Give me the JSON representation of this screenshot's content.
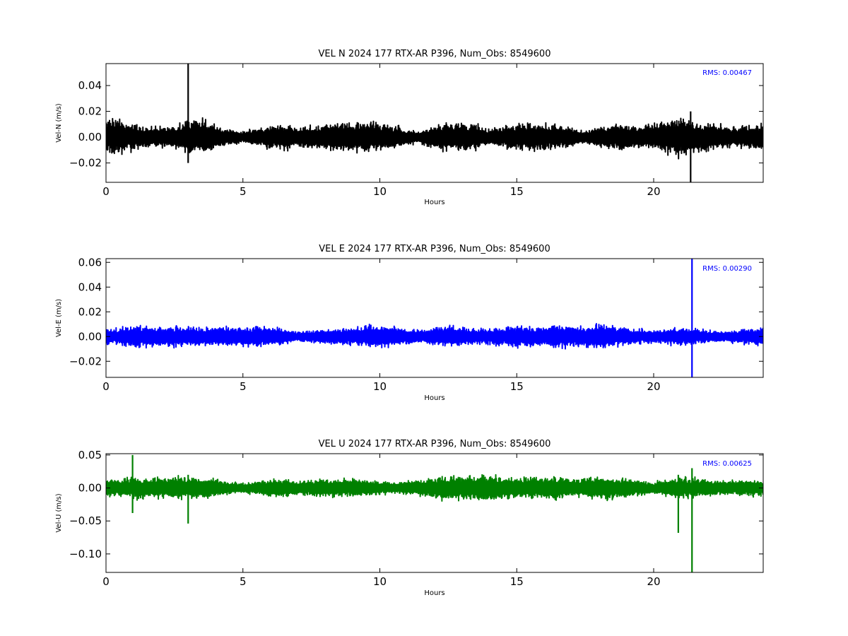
{
  "chart_data": [
    {
      "type": "line",
      "title": "VEL N 2024 177 RTX-AR  P396, Num_Obs: 8549600",
      "xlabel": "Hours",
      "ylabel": "Vel-N (m/s)",
      "xlim": [
        0,
        24
      ],
      "ylim": [
        -0.035,
        0.057
      ],
      "xticks": [
        0,
        5,
        10,
        15,
        20
      ],
      "yticks": [
        -0.02,
        0.0,
        0.02,
        0.04
      ],
      "ytick_labels": [
        "−0.02",
        "0.00",
        "0.02",
        "0.04"
      ],
      "rms_label": "RMS:  0.00467",
      "rms_value": 0.00467,
      "color": "#000000",
      "rms_color": "#0000ff",
      "grid": false,
      "series": [
        {
          "x": [
            0,
            0.5,
            1,
            1.5,
            2,
            2.5,
            3,
            3.5,
            4,
            4.5,
            5,
            5.5,
            6,
            6.5,
            7,
            7.5,
            8,
            8.5,
            9,
            9.5,
            10,
            10.5,
            11,
            11.5,
            12,
            12.5,
            13,
            13.5,
            14,
            14.5,
            15,
            15.5,
            16,
            16.5,
            17,
            17.5,
            18,
            18.5,
            19,
            19.5,
            20,
            20.5,
            21,
            21.5,
            22,
            22.5,
            23,
            23.5,
            24
          ],
          "amplitude": [
            0.018,
            0.015,
            0.012,
            0.01,
            0.009,
            0.01,
            0.016,
            0.018,
            0.011,
            0.007,
            0.006,
            0.008,
            0.011,
            0.012,
            0.01,
            0.011,
            0.012,
            0.013,
            0.013,
            0.014,
            0.013,
            0.011,
            0.007,
            0.006,
            0.011,
            0.014,
            0.013,
            0.012,
            0.008,
            0.01,
            0.012,
            0.012,
            0.012,
            0.011,
            0.009,
            0.005,
            0.01,
            0.012,
            0.012,
            0.011,
            0.012,
            0.016,
            0.018,
            0.014,
            0.013,
            0.011,
            0.009,
            0.012,
            0.011
          ],
          "spikes": [
            {
              "x": 3.0,
              "min": -0.02,
              "max": 0.057
            },
            {
              "x": 21.35,
              "min": -0.036,
              "max": 0.02
            }
          ]
        }
      ]
    },
    {
      "type": "line",
      "title": "VEL E 2024 177 RTX-AR  P396, Num_Obs: 8549600",
      "xlabel": "Hours",
      "ylabel": "Vel-E (m/s)",
      "xlim": [
        0,
        24
      ],
      "ylim": [
        -0.033,
        0.063
      ],
      "xticks": [
        0,
        5,
        10,
        15,
        20
      ],
      "yticks": [
        -0.02,
        0.0,
        0.02,
        0.04,
        0.06
      ],
      "ytick_labels": [
        "−0.02",
        "0.00",
        "0.02",
        "0.04",
        "0.06"
      ],
      "rms_label": "RMS:  0.00290",
      "rms_value": 0.0029,
      "color": "#0000ff",
      "rms_color": "#0000ff",
      "grid": false,
      "series": [
        {
          "x": [
            0,
            0.5,
            1,
            1.5,
            2,
            2.5,
            3,
            3.5,
            4,
            4.5,
            5,
            5.5,
            6,
            6.5,
            7,
            7.5,
            8,
            8.5,
            9,
            9.5,
            10,
            10.5,
            11,
            11.5,
            12,
            12.5,
            13,
            13.5,
            14,
            14.5,
            15,
            15.5,
            16,
            16.5,
            17,
            17.5,
            18,
            18.5,
            19,
            19.5,
            20,
            20.5,
            21,
            21.5,
            22,
            22.5,
            23,
            23.5,
            24
          ],
          "amplitude": [
            0.008,
            0.008,
            0.011,
            0.01,
            0.009,
            0.01,
            0.01,
            0.009,
            0.01,
            0.009,
            0.009,
            0.01,
            0.009,
            0.008,
            0.005,
            0.006,
            0.007,
            0.008,
            0.009,
            0.01,
            0.011,
            0.01,
            0.008,
            0.006,
            0.009,
            0.01,
            0.009,
            0.008,
            0.008,
            0.009,
            0.011,
            0.01,
            0.01,
            0.011,
            0.01,
            0.01,
            0.012,
            0.011,
            0.008,
            0.007,
            0.006,
            0.008,
            0.009,
            0.008,
            0.006,
            0.005,
            0.006,
            0.008,
            0.009
          ],
          "spikes": [
            {
              "x": 21.4,
              "min": -0.033,
              "max": 0.063
            }
          ]
        }
      ]
    },
    {
      "type": "line",
      "title": "VEL U 2024 177 RTX-AR  P396, Num_Obs: 8549600",
      "xlabel": "Hours",
      "ylabel": "Vel-U (m/s)",
      "xlim": [
        0,
        24
      ],
      "ylim": [
        -0.128,
        0.052
      ],
      "xticks": [
        0,
        5,
        10,
        15,
        20
      ],
      "yticks": [
        -0.1,
        -0.05,
        0.0,
        0.05
      ],
      "ytick_labels": [
        "−0.10",
        "−0.05",
        "0.00",
        "0.05"
      ],
      "rms_label": "RMS:  0.00625",
      "rms_value": 0.00625,
      "color": "#008000",
      "rms_color": "#0000ff",
      "grid": false,
      "series": [
        {
          "x": [
            0,
            0.5,
            1,
            1.5,
            2,
            2.5,
            3,
            3.5,
            4,
            4.5,
            5,
            5.5,
            6,
            6.5,
            7,
            7.5,
            8,
            8.5,
            9,
            9.5,
            10,
            10.5,
            11,
            11.5,
            12,
            12.5,
            13,
            13.5,
            14,
            14.5,
            15,
            15.5,
            16,
            16.5,
            17,
            17.5,
            18,
            18.5,
            19,
            19.5,
            20,
            20.5,
            21,
            21.5,
            22,
            22.5,
            23,
            23.5,
            24
          ],
          "amplitude": [
            0.018,
            0.015,
            0.02,
            0.018,
            0.019,
            0.02,
            0.021,
            0.02,
            0.016,
            0.011,
            0.009,
            0.012,
            0.016,
            0.017,
            0.012,
            0.015,
            0.017,
            0.016,
            0.017,
            0.015,
            0.012,
            0.01,
            0.012,
            0.016,
            0.02,
            0.022,
            0.022,
            0.024,
            0.025,
            0.02,
            0.018,
            0.02,
            0.019,
            0.02,
            0.016,
            0.018,
            0.021,
            0.02,
            0.016,
            0.013,
            0.011,
            0.016,
            0.021,
            0.018,
            0.015,
            0.013,
            0.014,
            0.016,
            0.014
          ],
          "spikes": [
            {
              "x": 0.97,
              "min": -0.038,
              "max": 0.05
            },
            {
              "x": 3.0,
              "min": -0.054,
              "max": 0.02
            },
            {
              "x": 20.9,
              "min": -0.068,
              "max": 0.02
            },
            {
              "x": 21.4,
              "min": -0.128,
              "max": 0.03
            }
          ]
        }
      ]
    }
  ]
}
